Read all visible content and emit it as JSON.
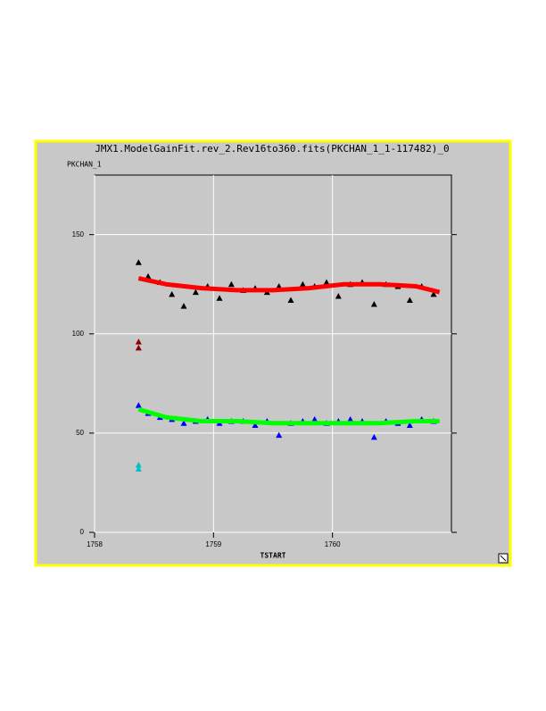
{
  "chart_data": {
    "type": "scatter",
    "title": "JMX1.ModelGainFit.rev_2.Rev16to360.fits(PKCHAN_1_1-117482)_0",
    "ylabel": "PKCHAN_1",
    "xlabel": "TSTART",
    "xlim": [
      1758,
      1761
    ],
    "ylim": [
      0,
      180
    ],
    "xticks": [
      1758,
      1759,
      1760
    ],
    "yticks": [
      0,
      50,
      100,
      150
    ],
    "grid": true,
    "series": [
      {
        "mode": "markers",
        "color": "#000000",
        "x": [
          1758.37,
          1758.45,
          1758.55,
          1758.65,
          1758.75,
          1758.85,
          1758.95,
          1759.05,
          1759.15,
          1759.25,
          1759.35,
          1759.45,
          1759.55,
          1759.65,
          1759.75,
          1759.85,
          1759.95,
          1760.05,
          1760.15,
          1760.25,
          1760.35,
          1760.45,
          1760.55,
          1760.65,
          1760.75,
          1760.85
        ],
        "values": [
          136,
          129,
          126,
          120,
          114,
          121,
          124,
          118,
          125,
          122,
          123,
          121,
          124,
          117,
          125,
          124,
          126,
          119,
          125,
          126,
          115,
          125,
          124,
          117,
          124,
          120
        ]
      },
      {
        "mode": "markers",
        "color": "#0000ff",
        "x": [
          1758.37,
          1758.45,
          1758.55,
          1758.65,
          1758.75,
          1758.85,
          1758.95,
          1759.05,
          1759.15,
          1759.25,
          1759.35,
          1759.45,
          1759.55,
          1759.65,
          1759.75,
          1759.85,
          1759.95,
          1760.05,
          1760.15,
          1760.25,
          1760.35,
          1760.45,
          1760.55,
          1760.65,
          1760.75,
          1760.85
        ],
        "values": [
          64,
          60,
          58,
          57,
          55,
          56,
          57,
          55,
          56,
          56,
          54,
          56,
          49,
          55,
          56,
          57,
          55,
          56,
          57,
          56,
          48,
          56,
          55,
          54,
          57,
          56
        ]
      },
      {
        "mode": "line",
        "color": "#ff0000",
        "x": [
          1758.37,
          1758.6,
          1758.9,
          1759.2,
          1759.5,
          1759.8,
          1760.1,
          1760.4,
          1760.7,
          1760.9
        ],
        "values": [
          128,
          125,
          123,
          122,
          122,
          123,
          125,
          125,
          124,
          121
        ]
      },
      {
        "mode": "line",
        "color": "#00ff00",
        "x": [
          1758.37,
          1758.6,
          1758.9,
          1759.2,
          1759.5,
          1759.8,
          1760.1,
          1760.4,
          1760.7,
          1760.9
        ],
        "values": [
          62,
          58,
          56,
          56,
          55,
          55,
          55,
          55,
          56,
          56
        ]
      },
      {
        "mode": "markers",
        "color": "#8b0000",
        "x": [
          1758.37,
          1758.37
        ],
        "values": [
          96,
          93
        ]
      },
      {
        "mode": "markers",
        "color": "#00bfbf",
        "x": [
          1758.37,
          1758.37
        ],
        "values": [
          34,
          32
        ]
      }
    ]
  }
}
